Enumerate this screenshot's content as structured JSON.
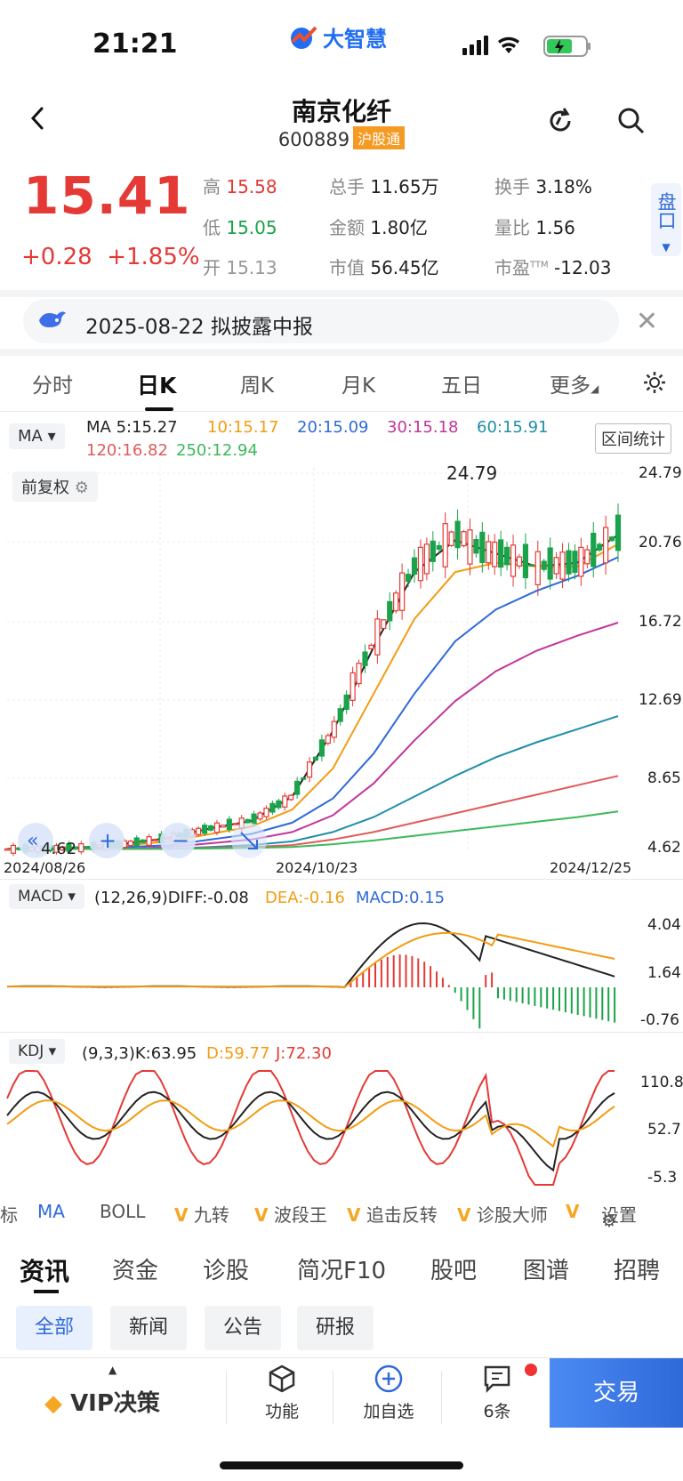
{
  "status": {
    "time": "21:21",
    "app_logo": "大智慧"
  },
  "header": {
    "name": "南京化纤",
    "code": "600889",
    "badge": "沪股通"
  },
  "quote": {
    "price": "15.41",
    "change": "+0.28",
    "pct": "+1.85%",
    "high_label": "高",
    "high": "15.58",
    "low_label": "低",
    "low": "15.05",
    "open_label": "开",
    "open": "15.13",
    "vol_label": "总手",
    "vol": "11.65万",
    "amt_label": "金额",
    "amt": "1.80亿",
    "mcap_label": "市值",
    "mcap": "56.45亿",
    "turn_label": "换手",
    "turn": "3.18%",
    "ratio_label": "量比",
    "ratio": "1.56",
    "pe_label": "市盈",
    "pe_sup": "TTM",
    "pe": "-12.03",
    "pankou": "盘口"
  },
  "notice": {
    "text": "2025-08-22 拟披露中报"
  },
  "chart_tabs": [
    "分时",
    "日K",
    "周K",
    "月K",
    "五日",
    "更多"
  ],
  "indicators": {
    "ma_btn": "MA",
    "ma5": "MA 5:15.27",
    "ma10": "10:15.17",
    "ma20": "20:15.09",
    "ma30": "30:15.18",
    "ma60": "60:15.91",
    "ma120": "120:16.82",
    "ma250": "250:12.94",
    "range_btn": "区间统计",
    "fq_btn": "前复权",
    "peak": "24.79",
    "low_mark": "4.62",
    "macd_btn": "MACD",
    "macd_params": "(12,26,9)DIFF:-0.08",
    "dea": "DEA:-0.16",
    "macd": "MACD:0.15",
    "kdj_btn": "KDJ",
    "kdj_params": "(9,3,3)K:63.95",
    "kdj_d": "D:59.77",
    "kdj_j": "J:72.30"
  },
  "colors": {
    "ma5": "#222222",
    "ma10": "#f39c12",
    "ma20": "#2f6ad9",
    "ma30": "#c2359b",
    "ma60": "#1e8fa8",
    "ma120": "#e05a5a",
    "ma250": "#3cb95a",
    "up": "#e53935",
    "down": "#1aa34a",
    "accent": "#2f6ad9"
  },
  "chart_data": [
    {
      "type": "line",
      "title": "日K",
      "y_ticks": [
        "24.79",
        "20.76",
        "16.72",
        "12.69",
        "8.65",
        "4.62"
      ],
      "x_ticks": [
        "2024/08/26",
        "2024/10/23",
        "2024/12/25"
      ],
      "ylim": [
        4.62,
        24.79
      ],
      "series": [
        {
          "name": "MA5",
          "values": [
            4.7,
            4.7,
            4.8,
            5.0,
            5.3,
            5.8,
            6.2,
            7.5,
            11,
            15.5,
            19.5,
            21.2,
            20.5,
            19.8,
            20.0,
            21.5
          ]
        },
        {
          "name": "MA10",
          "values": [
            4.7,
            4.7,
            4.75,
            4.9,
            5.1,
            5.5,
            5.9,
            6.8,
            9,
            13,
            17,
            19.5,
            20.0,
            19.8,
            19.8,
            21
          ]
        },
        {
          "name": "MA20",
          "values": [
            4.7,
            4.7,
            4.7,
            4.8,
            4.9,
            5.2,
            5.5,
            6.1,
            7.4,
            9.8,
            13,
            15.8,
            17.5,
            18.5,
            19.3,
            20.3
          ]
        },
        {
          "name": "MA30",
          "values": [
            4.7,
            4.7,
            4.7,
            4.7,
            4.8,
            5.0,
            5.2,
            5.6,
            6.5,
            8.2,
            10.5,
            12.6,
            14.2,
            15.3,
            16.1,
            16.8
          ]
        },
        {
          "name": "MA60",
          "values": [
            4.7,
            4.7,
            4.7,
            4.7,
            4.7,
            4.8,
            4.9,
            5.1,
            5.6,
            6.4,
            7.5,
            8.6,
            9.6,
            10.4,
            11.1,
            11.8
          ]
        },
        {
          "name": "MA120",
          "values": [
            4.7,
            4.7,
            4.7,
            4.7,
            4.7,
            4.75,
            4.8,
            4.9,
            5.2,
            5.6,
            6.1,
            6.6,
            7.1,
            7.6,
            8.1,
            8.6
          ]
        },
        {
          "name": "MA250",
          "values": [
            4.7,
            4.7,
            4.7,
            4.7,
            4.7,
            4.72,
            4.75,
            4.8,
            4.95,
            5.15,
            5.4,
            5.65,
            5.9,
            6.15,
            6.4,
            6.7
          ]
        }
      ]
    },
    {
      "type": "line",
      "title": "MACD",
      "y_ticks": [
        "4.04",
        "1.64",
        "-0.76"
      ],
      "ylim": [
        -0.76,
        4.04
      ]
    },
    {
      "type": "line",
      "title": "KDJ",
      "y_ticks": [
        "110.8",
        "52.7",
        "-5.3"
      ],
      "ylim": [
        -5.3,
        110.8
      ]
    }
  ],
  "tools": [
    "标",
    "MA",
    "BOLL",
    "九转",
    "波段王",
    "追击反转",
    "诊股大师",
    "V",
    "设置"
  ],
  "news_tabs": [
    "资讯",
    "资金",
    "诊股",
    "简况F10",
    "股吧",
    "图谱",
    "招聘"
  ],
  "chips": [
    "全部",
    "新闻",
    "公告",
    "研报"
  ],
  "bottom": {
    "vip": "VIP决策",
    "func": "功能",
    "add": "加自选",
    "count": "6条",
    "trade": "交易"
  }
}
